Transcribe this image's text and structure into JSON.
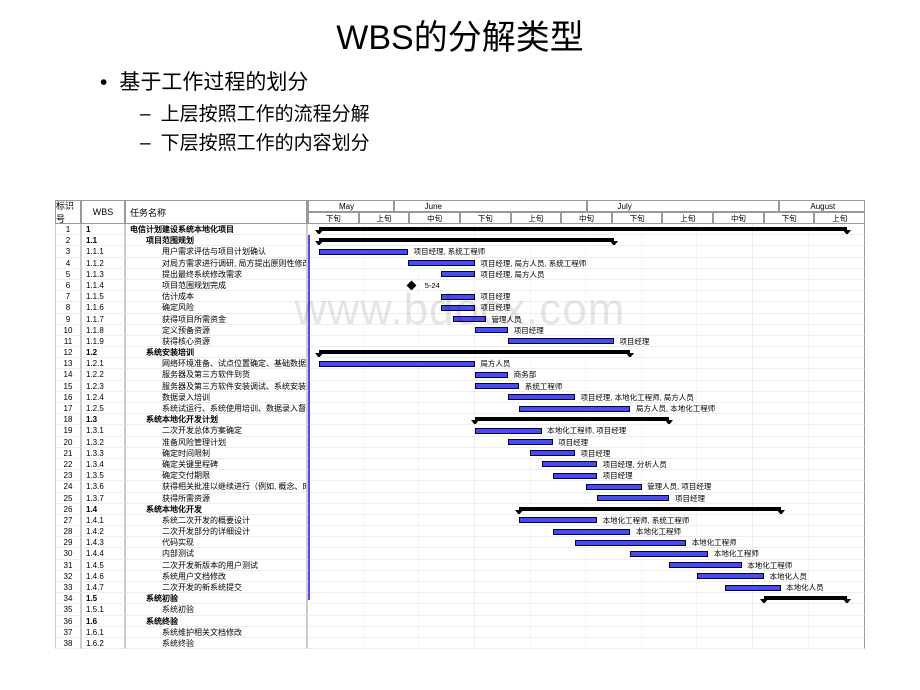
{
  "title": "WBS的分解类型",
  "bullets": {
    "b1": "基于工作过程的划分",
    "b2a": "上层按照工作的流程分解",
    "b2b": "下层按照工作的内容划分"
  },
  "headers": {
    "id": "标识号",
    "wbs": "WBS",
    "name": "任务名称",
    "months": [
      "May",
      "June",
      "July",
      "August"
    ],
    "subcols": [
      "下旬",
      "上旬",
      "中旬",
      "下旬",
      "上旬",
      "中旬",
      "下旬",
      "上旬",
      "中旬",
      "下旬",
      "上旬"
    ]
  },
  "bar_color": "#4a4af0",
  "summary_color": "#000000",
  "grid_color": "#cccccc",
  "rows": [
    {
      "id": 1,
      "wbs": "1",
      "name": "电信计划建设系统本地化项目",
      "bold": true,
      "summary": [
        2,
        97
      ]
    },
    {
      "id": 2,
      "wbs": "1.1",
      "name": "项目范围规划",
      "bold": true,
      "indent": 1,
      "summary": [
        2,
        55
      ]
    },
    {
      "id": 3,
      "wbs": "1.1.1",
      "name": "用户需求评估与项目计划确认",
      "indent": 2,
      "bar": [
        2,
        18
      ],
      "res": "项目经理, 系统工程师"
    },
    {
      "id": 4,
      "wbs": "1.1.2",
      "name": "对局方需求进行调研, 局方提出原则性修改意见.",
      "indent": 2,
      "bar": [
        18,
        30
      ],
      "res": "项目经理, 局方人员, 系统工程师"
    },
    {
      "id": 5,
      "wbs": "1.1.3",
      "name": "提出最终系统修改需求",
      "indent": 2,
      "bar": [
        24,
        30
      ],
      "res": "项目经理, 局方人员"
    },
    {
      "id": 6,
      "wbs": "1.1.4",
      "name": "项目范围规划完成",
      "indent": 2,
      "milestone": 18,
      "res": "5-24"
    },
    {
      "id": 7,
      "wbs": "1.1.5",
      "name": "估计成本",
      "indent": 2,
      "bar": [
        24,
        30
      ],
      "res": "项目经理"
    },
    {
      "id": 8,
      "wbs": "1.1.6",
      "name": "确定风险",
      "indent": 2,
      "bar": [
        24,
        30
      ],
      "res": "项目经理"
    },
    {
      "id": 9,
      "wbs": "1.1.7",
      "name": "获得项目所需资金",
      "indent": 2,
      "bar": [
        26,
        32
      ],
      "res": "管理人员"
    },
    {
      "id": 10,
      "wbs": "1.1.8",
      "name": "定义预备资源",
      "indent": 2,
      "bar": [
        30,
        36
      ],
      "res": "项目经理"
    },
    {
      "id": 11,
      "wbs": "1.1.9",
      "name": "获得核心资源",
      "indent": 2,
      "bar": [
        36,
        55
      ],
      "res": "项目经理"
    },
    {
      "id": 12,
      "wbs": "1.2",
      "name": "系统安装培训",
      "bold": true,
      "indent": 1,
      "summary": [
        2,
        58
      ]
    },
    {
      "id": 13,
      "wbs": "1.2.1",
      "name": "网络环境准备、试点位置确定、基础数据确定",
      "indent": 2,
      "bar": [
        2,
        30
      ],
      "res": "局方人员"
    },
    {
      "id": 14,
      "wbs": "1.2.2",
      "name": "服务器及第三方软件到货",
      "indent": 2,
      "bar": [
        30,
        36
      ],
      "res": "商务部"
    },
    {
      "id": 15,
      "wbs": "1.2.3",
      "name": "服务器及第三方软件安装调试、系统安装调试",
      "indent": 2,
      "bar": [
        30,
        38
      ],
      "res": "系统工程师"
    },
    {
      "id": 16,
      "wbs": "1.2.4",
      "name": "数据录入培训",
      "indent": 2,
      "bar": [
        36,
        48
      ],
      "res": "项目经理, 本地化工程师, 局方人员"
    },
    {
      "id": 17,
      "wbs": "1.2.5",
      "name": "系统试运行、系统使用培训、数据录入督导.",
      "indent": 2,
      "bar": [
        38,
        58
      ],
      "res": "局方人员, 本地化工程师"
    },
    {
      "id": 18,
      "wbs": "1.3",
      "name": "系统本地化开发计划",
      "bold": true,
      "indent": 1,
      "summary": [
        30,
        65
      ]
    },
    {
      "id": 19,
      "wbs": "1.3.1",
      "name": "二次开发总体方案确定",
      "indent": 2,
      "bar": [
        30,
        42
      ],
      "res": "本地化工程师, 项目经理"
    },
    {
      "id": 20,
      "wbs": "1.3.2",
      "name": "准备风险管理计划",
      "indent": 2,
      "bar": [
        36,
        44
      ],
      "res": "项目经理"
    },
    {
      "id": 21,
      "wbs": "1.3.3",
      "name": "确定时间限制",
      "indent": 2,
      "bar": [
        40,
        48
      ],
      "res": "项目经理"
    },
    {
      "id": 22,
      "wbs": "1.3.4",
      "name": "确定关键里程碑",
      "indent": 2,
      "bar": [
        42,
        52
      ],
      "res": "项目经理, 分析人员"
    },
    {
      "id": 23,
      "wbs": "1.3.5",
      "name": "确定交付期限",
      "indent": 2,
      "bar": [
        44,
        52
      ],
      "res": "项目经理"
    },
    {
      "id": 24,
      "wbs": "1.3.6",
      "name": "获得相关批准以继续进行（例如, 概念、时序表和预算",
      "indent": 2,
      "bar": [
        50,
        60
      ],
      "res": "管理人员, 项目经理"
    },
    {
      "id": 25,
      "wbs": "1.3.7",
      "name": "获得所需资源",
      "indent": 2,
      "bar": [
        52,
        65
      ],
      "res": "项目经理"
    },
    {
      "id": 26,
      "wbs": "1.4",
      "name": "系统本地化开发",
      "bold": true,
      "indent": 1,
      "summary": [
        38,
        85
      ]
    },
    {
      "id": 27,
      "wbs": "1.4.1",
      "name": "系统二次开发的概要设计",
      "indent": 2,
      "bar": [
        38,
        52
      ],
      "res": "本地化工程师, 系统工程师"
    },
    {
      "id": 28,
      "wbs": "1.4.2",
      "name": "二次开发部分的详细设计",
      "indent": 2,
      "bar": [
        44,
        58
      ],
      "res": "本地化工程师"
    },
    {
      "id": 29,
      "wbs": "1.4.3",
      "name": "代码实现",
      "indent": 2,
      "bar": [
        48,
        68
      ],
      "res": "本地化工程师"
    },
    {
      "id": 30,
      "wbs": "1.4.4",
      "name": "内部测试",
      "indent": 2,
      "bar": [
        58,
        72
      ],
      "res": "本地化工程师"
    },
    {
      "id": 31,
      "wbs": "1.4.5",
      "name": "二次开发新版本的用户测试",
      "indent": 2,
      "bar": [
        65,
        78
      ],
      "res": "本地化工程师"
    },
    {
      "id": 32,
      "wbs": "1.4.6",
      "name": "系统用户文档修改",
      "indent": 2,
      "bar": [
        70,
        82
      ],
      "res": "本地化人员"
    },
    {
      "id": 33,
      "wbs": "1.4.7",
      "name": "二次开发的新系统提交",
      "indent": 2,
      "bar": [
        75,
        85
      ],
      "res": "本地化人员"
    },
    {
      "id": 34,
      "wbs": "1.5",
      "name": "系统初验",
      "bold": true,
      "indent": 1,
      "summary": [
        82,
        97
      ]
    },
    {
      "id": 35,
      "wbs": "1.5.1",
      "name": "系统初验",
      "indent": 2
    },
    {
      "id": 36,
      "wbs": "1.6",
      "name": "系统终验",
      "bold": true,
      "indent": 1
    },
    {
      "id": 37,
      "wbs": "1.6.1",
      "name": "系统维护相关文档修改",
      "indent": 2
    },
    {
      "id": 38,
      "wbs": "1.6.2",
      "name": "系统终验",
      "indent": 2
    }
  ],
  "watermark": "www.bdocx.com"
}
